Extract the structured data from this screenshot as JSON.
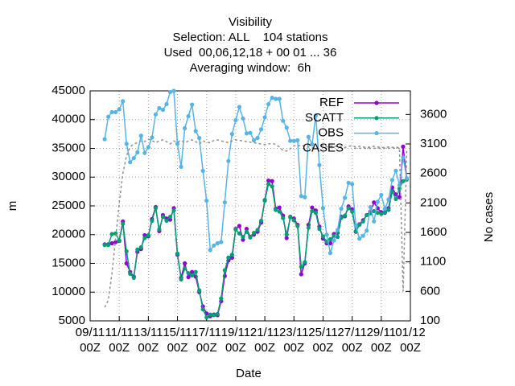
{
  "chart_data": {
    "type": "line",
    "title": [
      "Visibility",
      "Selection: ALL    104 stations",
      "Used  00,06,12,18 + 00 01 ... 36",
      "Averaging window:  6h"
    ],
    "xlabel": "Date",
    "ylabel": "m",
    "y2label": "No cases",
    "x": [
      "10/11 00Z",
      "10/11 06Z",
      "10/11 12Z",
      "10/11 18Z",
      "11/11 00Z",
      "11/11 06Z",
      "11/11 12Z",
      "11/11 18Z",
      "12/11 00Z",
      "12/11 06Z",
      "12/11 12Z",
      "12/11 18Z",
      "13/11 00Z",
      "13/11 06Z",
      "13/11 12Z",
      "13/11 18Z",
      "14/11 00Z",
      "14/11 06Z",
      "14/11 12Z",
      "14/11 18Z",
      "15/11 00Z",
      "15/11 06Z",
      "15/11 12Z",
      "15/11 18Z",
      "16/11 00Z",
      "16/11 06Z",
      "16/11 12Z",
      "16/11 18Z",
      "17/11 00Z",
      "17/11 06Z",
      "17/11 12Z",
      "17/11 18Z",
      "18/11 00Z",
      "18/11 06Z",
      "18/11 12Z",
      "18/11 18Z",
      "19/11 00Z",
      "19/11 06Z",
      "19/11 12Z",
      "19/11 18Z",
      "20/11 00Z",
      "20/11 06Z",
      "20/11 12Z",
      "20/11 18Z",
      "21/11 00Z",
      "21/11 06Z",
      "21/11 12Z",
      "21/11 18Z",
      "22/11 00Z",
      "22/11 06Z",
      "22/11 12Z",
      "22/11 18Z",
      "23/11 00Z",
      "23/11 06Z",
      "23/11 12Z",
      "23/11 18Z",
      "24/11 00Z",
      "24/11 06Z",
      "24/11 12Z",
      "24/11 18Z",
      "25/11 00Z",
      "25/11 06Z",
      "25/11 12Z",
      "25/11 18Z",
      "26/11 00Z",
      "26/11 06Z",
      "26/11 12Z",
      "26/11 18Z",
      "27/11 00Z",
      "27/11 06Z",
      "27/11 12Z",
      "27/11 18Z",
      "28/11 00Z",
      "28/11 06Z",
      "28/11 12Z",
      "28/11 18Z",
      "29/11 00Z",
      "29/11 06Z",
      "29/11 12Z",
      "29/11 18Z",
      "30/11 00Z",
      "30/11 06Z",
      "30/11 12Z",
      "30/11 18Z"
    ],
    "xlim": [
      "09/11 00Z",
      "01/12 00Z"
    ],
    "xticks": [
      "09/11 00Z",
      "11/11 00Z",
      "13/11 00Z",
      "15/11 00Z",
      "17/11 00Z",
      "19/11 00Z",
      "21/11 00Z",
      "23/11 00Z",
      "25/11 00Z",
      "27/11 00Z",
      "29/11 00Z",
      "01/12 00Z"
    ],
    "ylim": [
      5000,
      45000
    ],
    "yticks": [
      5000,
      10000,
      15000,
      20000,
      25000,
      30000,
      35000,
      40000,
      45000
    ],
    "y2lim": [
      100,
      4000
    ],
    "y2ticks": [
      100,
      600,
      1100,
      1600,
      2100,
      2600,
      3100,
      3600
    ],
    "grid": true,
    "legend": "top-right",
    "series": [
      {
        "name": "REF",
        "color": "#9400d3",
        "values": [
          18300,
          18300,
          18500,
          18700,
          18900,
          22300,
          15000,
          13500,
          12700,
          17000,
          17500,
          19900,
          19700,
          22700,
          24800,
          20600,
          23400,
          22800,
          22600,
          24600,
          16500,
          12500,
          15000,
          12600,
          13500,
          12700,
          10000,
          7500,
          6300,
          5800,
          6100,
          6000,
          8400,
          12800,
          15500,
          16000,
          21000,
          21500,
          19100,
          21000,
          19600,
          20000,
          20500,
          22100,
          26000,
          29400,
          29300,
          24500,
          24700,
          23300,
          19400,
          23100,
          22800,
          21700,
          13100,
          15000,
          21700,
          24700,
          24200,
          21400,
          19300,
          18500,
          18500,
          20100,
          20300,
          23100,
          23200,
          24900,
          24400,
          20500,
          21800,
          22500,
          23400,
          24000,
          25600,
          24600,
          23900,
          23800,
          24600,
          28200,
          27000,
          26500,
          35300,
          29600
        ]
      },
      {
        "name": "SCATT",
        "color": "#009e73",
        "values": [
          18200,
          18200,
          20100,
          20200,
          19000,
          21900,
          17100,
          13200,
          12500,
          17400,
          17800,
          19400,
          19900,
          22400,
          24600,
          20900,
          23100,
          22400,
          23100,
          24200,
          16700,
          12200,
          14100,
          13300,
          12900,
          13500,
          10300,
          7000,
          5600,
          6100,
          6000,
          6200,
          8900,
          13800,
          16000,
          16500,
          20900,
          20200,
          19600,
          20500,
          19500,
          20300,
          20800,
          22400,
          25900,
          28800,
          28400,
          24300,
          24000,
          22900,
          20000,
          23000,
          22500,
          21500,
          14400,
          15200,
          21200,
          24100,
          23800,
          21000,
          19700,
          18800,
          19200,
          19800,
          19600,
          22900,
          23300,
          24600,
          24000,
          20600,
          21700,
          22300,
          23400,
          23700,
          24100,
          23800,
          23600,
          23900,
          24300,
          27500,
          26200,
          28000,
          29300,
          29600
        ]
      },
      {
        "name": "OBS",
        "color": "#56b4e9",
        "values": [
          36600,
          40500,
          41300,
          41300,
          41800,
          43200,
          35800,
          32600,
          33300,
          34300,
          37200,
          34200,
          35200,
          36900,
          40900,
          42000,
          41700,
          42700,
          44800,
          45000,
          35800,
          31800,
          38500,
          40600,
          42600,
          38000,
          36800,
          31100,
          25900,
          17300,
          18100,
          18500,
          18700,
          25600,
          32800,
          37500,
          39900,
          42200,
          40200,
          37600,
          37700,
          36400,
          36800,
          38300,
          40400,
          42700,
          43800,
          43600,
          43600,
          39800,
          38600,
          36300,
          36300,
          36400,
          26700,
          26500,
          37000,
          35700,
          40700,
          32100,
          24600,
          20000,
          16800,
          19000,
          20800,
          24500,
          26400,
          29000,
          28800,
          21600,
          19300,
          19800,
          20700,
          24800,
          22300,
          25700,
          26900,
          24500,
          26100,
          29500,
          31100,
          28600,
          33400,
          29800
        ]
      },
      {
        "name": "CASES",
        "color": "#909090",
        "axis": "y2",
        "dashed": true,
        "values": [
          330,
          450,
          900,
          1500,
          2100,
          2600,
          2900,
          3050,
          3100,
          3120,
          3150,
          3140,
          3180,
          3160,
          3120,
          3150,
          3170,
          3140,
          3100,
          3150,
          3130,
          3160,
          3120,
          3150,
          3170,
          3140,
          3100,
          3150,
          3130,
          3120,
          3160,
          3170,
          3150,
          3140,
          3120,
          3150,
          3170,
          3160,
          3150,
          3140,
          3130,
          3120,
          3110,
          3100,
          3090,
          3100,
          3110,
          3090,
          3050,
          2990,
          2980,
          3020,
          3070,
          3060,
          3080,
          3060,
          3050,
          3030,
          3060,
          3070,
          3080,
          3050,
          3060,
          3070,
          3050,
          3060,
          3040,
          3060,
          3070,
          3050,
          3060,
          3050,
          3040,
          3050,
          3060,
          3050,
          3040,
          3040,
          3050,
          3040,
          3050,
          3030,
          600,
          3000
        ]
      }
    ]
  }
}
